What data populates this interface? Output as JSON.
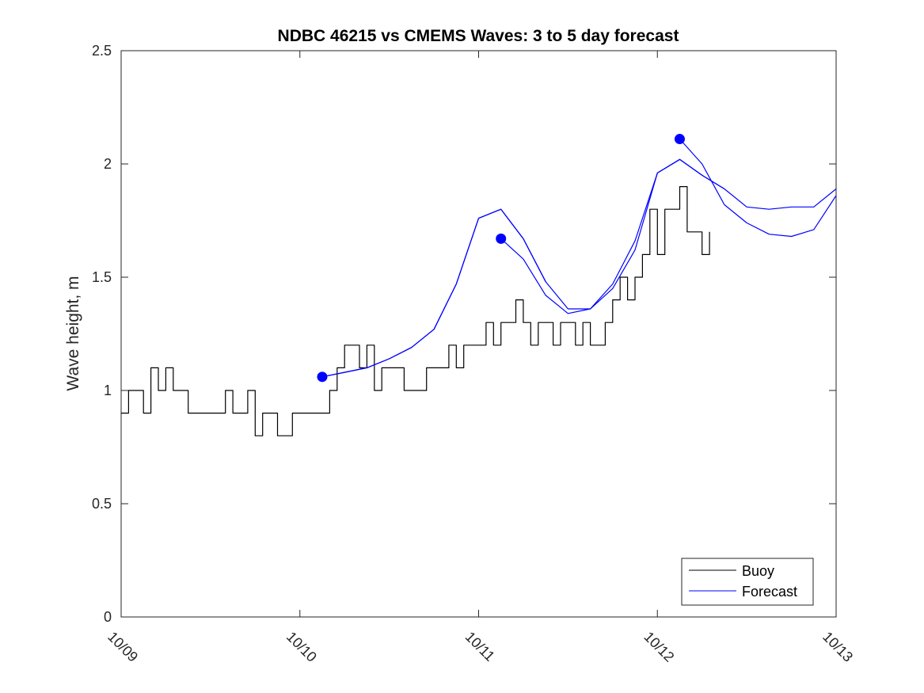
{
  "chart_data": {
    "type": "line",
    "title": "NDBC 46215 vs CMEMS Waves: 3 to 5 day forecast",
    "xlabel": "",
    "ylabel": "Wave height, m",
    "xlim": [
      "10/09 00:00",
      "10/13 00:00"
    ],
    "ylim": [
      0,
      2.5
    ],
    "x_ticks": [
      "10/09",
      "10/10",
      "10/11",
      "10/12",
      "10/13"
    ],
    "y_ticks": [
      "0",
      "0.5",
      "1",
      "1.5",
      "2",
      "2.5"
    ],
    "legend": {
      "position": "bottom-right",
      "entries": [
        "Buoy",
        "Forecast"
      ]
    },
    "colors": {
      "buoy": "#000000",
      "forecast": "#0000ff"
    },
    "buoy": {
      "name": "Buoy",
      "x": [
        "10/09 00:00",
        "10/09 01:00",
        "10/09 02:00",
        "10/09 03:00",
        "10/09 04:00",
        "10/09 05:00",
        "10/09 06:00",
        "10/09 07:00",
        "10/09 08:00",
        "10/09 09:00",
        "10/09 10:00",
        "10/09 11:00",
        "10/09 12:00",
        "10/09 13:00",
        "10/09 14:00",
        "10/09 15:00",
        "10/09 16:00",
        "10/09 17:00",
        "10/09 18:00",
        "10/09 19:00",
        "10/09 20:00",
        "10/09 21:00",
        "10/09 22:00",
        "10/09 23:00",
        "10/10 00:00",
        "10/10 01:00",
        "10/10 02:00",
        "10/10 03:00",
        "10/10 04:00",
        "10/10 05:00",
        "10/10 06:00",
        "10/10 07:00",
        "10/10 08:00",
        "10/10 09:00",
        "10/10 10:00",
        "10/10 11:00",
        "10/10 12:00",
        "10/10 13:00",
        "10/10 14:00",
        "10/10 15:00",
        "10/10 16:00",
        "10/10 17:00",
        "10/10 18:00",
        "10/10 19:00",
        "10/10 20:00",
        "10/10 21:00",
        "10/10 22:00",
        "10/10 23:00",
        "10/11 00:00",
        "10/11 01:00",
        "10/11 02:00",
        "10/11 03:00",
        "10/11 04:00",
        "10/11 05:00",
        "10/11 06:00",
        "10/11 07:00",
        "10/11 08:00",
        "10/11 09:00",
        "10/11 10:00",
        "10/11 11:00",
        "10/11 12:00",
        "10/11 13:00",
        "10/11 14:00",
        "10/11 15:00",
        "10/11 16:00",
        "10/11 17:00",
        "10/11 18:00",
        "10/11 19:00",
        "10/11 20:00",
        "10/11 21:00",
        "10/11 22:00",
        "10/11 23:00",
        "10/12 00:00",
        "10/12 01:00",
        "10/12 02:00",
        "10/12 03:00",
        "10/12 04:00",
        "10/12 05:00",
        "10/12 06:00",
        "10/12 07:00"
      ],
      "y": [
        0.9,
        1.0,
        1.0,
        0.9,
        1.1,
        1.0,
        1.1,
        1.0,
        1.0,
        0.9,
        0.9,
        0.9,
        0.9,
        0.9,
        1.0,
        0.9,
        0.9,
        1.0,
        0.8,
        0.9,
        0.9,
        0.8,
        0.8,
        0.9,
        0.9,
        0.9,
        0.9,
        0.9,
        1.0,
        1.1,
        1.2,
        1.2,
        1.1,
        1.2,
        1.0,
        1.1,
        1.1,
        1.1,
        1.0,
        1.0,
        1.0,
        1.1,
        1.1,
        1.1,
        1.2,
        1.1,
        1.2,
        1.2,
        1.2,
        1.3,
        1.2,
        1.3,
        1.3,
        1.4,
        1.3,
        1.2,
        1.3,
        1.3,
        1.2,
        1.3,
        1.3,
        1.2,
        1.3,
        1.2,
        1.2,
        1.3,
        1.4,
        1.5,
        1.4,
        1.5,
        1.6,
        1.8,
        1.6,
        1.8,
        1.8,
        1.9,
        1.7,
        1.7,
        1.6,
        1.7
      ]
    },
    "forecast": {
      "name": "Forecast",
      "x": [
        "10/10 03:00",
        "10/10 06:00",
        "10/10 09:00",
        "10/10 12:00",
        "10/10 15:00",
        "10/10 18:00",
        "10/10 21:00",
        "10/11 00:00",
        "10/11 03:00",
        "10/11 06:00",
        "10/11 09:00",
        "10/11 12:00",
        "10/11 15:00",
        "10/11 18:00",
        "10/11 21:00",
        "10/12 00:00",
        "10/12 03:00",
        "10/12 06:00",
        "10/12 09:00",
        "10/12 12:00",
        "10/12 15:00",
        "10/12 18:00",
        "10/12 21:00",
        "10/13 00:00"
      ],
      "y": [
        1.06,
        1.08,
        1.1,
        1.14,
        1.19,
        1.27,
        1.47,
        1.76,
        1.8,
        1.67,
        1.48,
        1.36,
        1.36,
        1.47,
        1.66,
        1.96,
        2.02,
        1.95,
        1.89,
        1.81,
        1.8,
        1.81,
        1.81,
        1.89
      ]
    },
    "forecast_runs": [
      {
        "x": [
          "10/10 03:00",
          "10/10 06:00",
          "10/10 09:00",
          "10/10 12:00",
          "10/10 15:00",
          "10/10 18:00",
          "10/10 21:00",
          "10/11 00:00",
          "10/11 03:00",
          "10/11 06:00",
          "10/11 09:00"
        ],
        "y": [
          1.06,
          1.08,
          1.1,
          1.14,
          1.19,
          1.27,
          1.47,
          1.76,
          1.8,
          1.67,
          1.48
        ]
      },
      {
        "x": [
          "10/11 03:00",
          "10/11 06:00",
          "10/11 09:00",
          "10/11 12:00",
          "10/11 15:00",
          "10/11 18:00",
          "10/11 21:00",
          "10/12 00:00",
          "10/12 03:00",
          "10/12 06:00",
          "10/12 09:00"
        ],
        "y": [
          1.67,
          1.58,
          1.42,
          1.34,
          1.36,
          1.45,
          1.62,
          1.96,
          2.02,
          1.95,
          1.89
        ]
      },
      {
        "x": [
          "10/12 03:00",
          "10/12 06:00",
          "10/12 09:00",
          "10/12 12:00",
          "10/12 15:00",
          "10/12 18:00",
          "10/12 21:00",
          "10/13 00:00"
        ],
        "y": [
          2.11,
          2.0,
          1.82,
          1.74,
          1.69,
          1.68,
          1.71,
          1.86
        ]
      }
    ],
    "markers": {
      "x": [
        "10/10 03:00",
        "10/11 03:00",
        "10/12 03:00"
      ],
      "y": [
        1.06,
        1.67,
        2.11
      ]
    }
  }
}
